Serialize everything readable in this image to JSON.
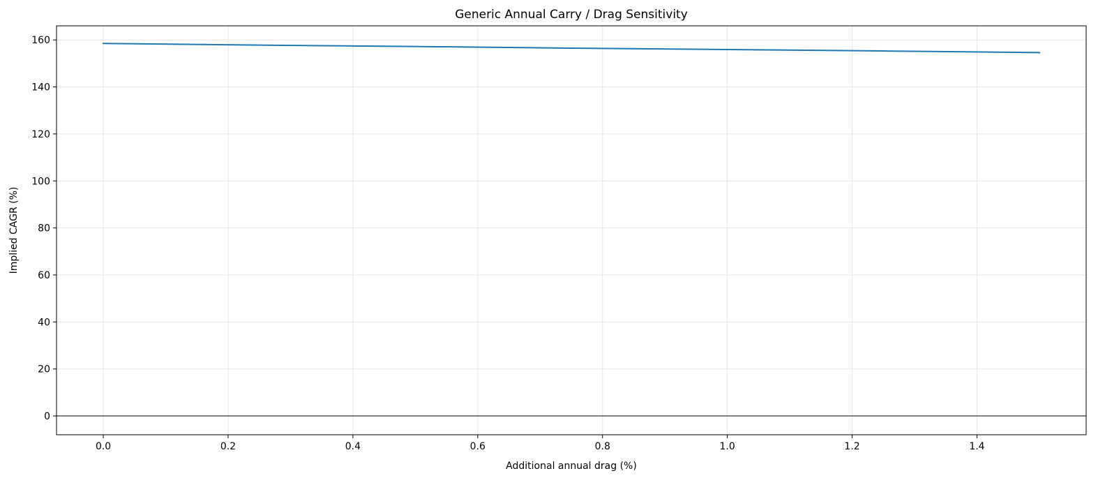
{
  "chart_data": {
    "type": "line",
    "title": "Generic Annual Carry / Drag Sensitivity",
    "xlabel": "Additional annual drag (%)",
    "ylabel": "Implied CAGR (%)",
    "xlim": [
      -0.075,
      1.575
    ],
    "ylim": [
      -8,
      166
    ],
    "xticks": [
      0.0,
      0.2,
      0.4,
      0.6,
      0.8,
      1.0,
      1.2,
      1.4
    ],
    "xtick_labels": [
      "0.0",
      "0.2",
      "0.4",
      "0.6",
      "0.8",
      "1.0",
      "1.2",
      "1.4"
    ],
    "yticks": [
      0,
      20,
      40,
      60,
      80,
      100,
      120,
      140,
      160
    ],
    "ytick_labels": [
      "0",
      "20",
      "40",
      "60",
      "80",
      "100",
      "120",
      "140",
      "160"
    ],
    "grid": true,
    "reference_line_y": 0,
    "series": [
      {
        "x": [
          0.0,
          0.25,
          0.5,
          0.75,
          1.0,
          1.25,
          1.5
        ],
        "y": [
          158.5,
          157.8,
          157.2,
          156.5,
          155.9,
          155.3,
          154.6
        ],
        "color": "#1f77b4"
      }
    ]
  }
}
